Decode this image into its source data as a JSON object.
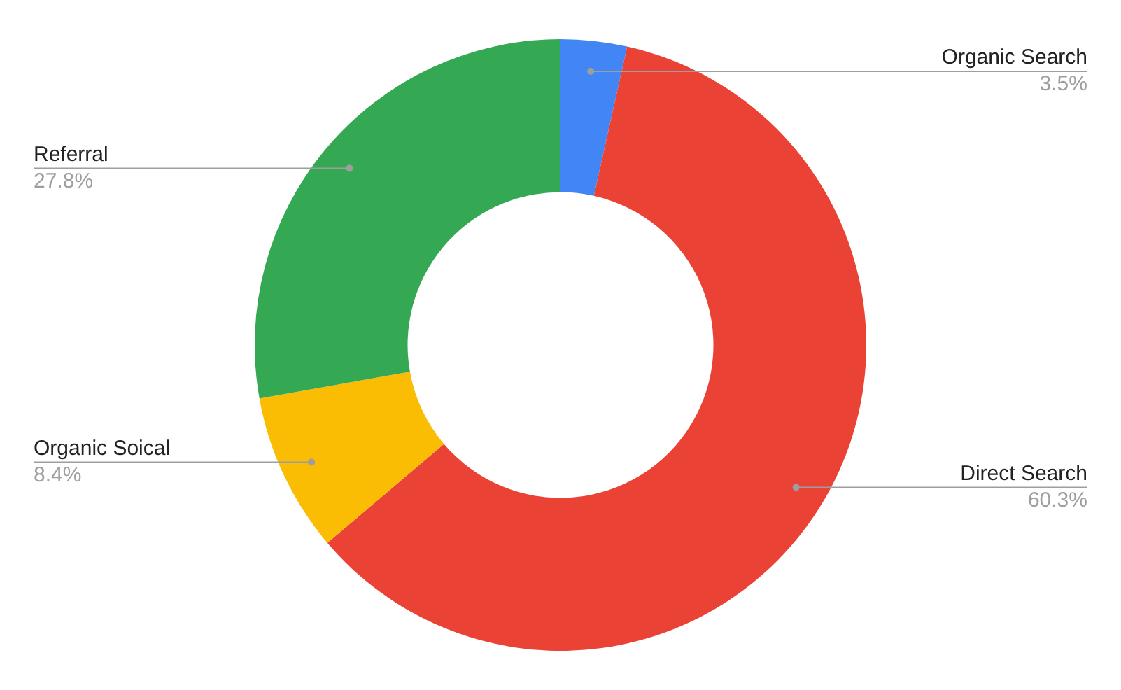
{
  "chart_data": {
    "type": "donut",
    "categories": [
      "Organic Search",
      "Direct Search",
      "Organic Soical",
      "Referral"
    ],
    "values": [
      3.5,
      60.3,
      8.4,
      27.8
    ],
    "value_labels": [
      "3.5%",
      "60.3%",
      "8.4%",
      "27.8%"
    ],
    "colors": [
      "#4285f4",
      "#ea4335",
      "#fbbc04",
      "#34a853"
    ],
    "legend": false
  }
}
